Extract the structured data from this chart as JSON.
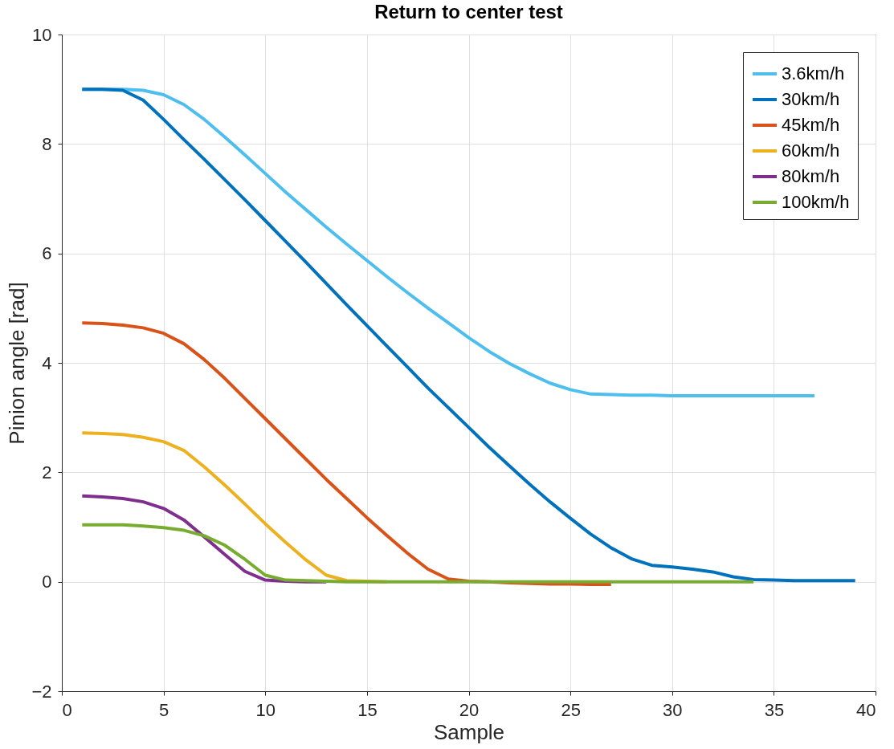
{
  "chart_data": {
    "type": "line",
    "title": "Return to center test",
    "xlabel": "Sample",
    "ylabel": "Pinion angle [rad]",
    "xlim": [
      0,
      40
    ],
    "xticks": [
      0,
      5,
      10,
      15,
      20,
      25,
      30,
      35,
      40
    ],
    "ylim": [
      -2,
      10
    ],
    "yticks": [
      -2,
      0,
      2,
      4,
      6,
      8,
      10
    ],
    "grid": true,
    "legend": "top right",
    "marker": "none",
    "line_style": "solid",
    "series": [
      {
        "name": "3.6km/h",
        "color": "#4dbeee",
        "x": [
          1,
          2,
          3,
          4,
          5,
          6,
          7,
          8,
          9,
          10,
          11,
          12,
          13,
          14,
          15,
          16,
          17,
          18,
          19,
          20,
          21,
          22,
          23,
          24,
          25,
          26,
          27,
          28,
          29,
          30,
          31,
          32,
          33,
          34,
          35,
          36,
          37
        ],
        "values": [
          9.0,
          9.0,
          9.0,
          8.98,
          8.9,
          8.72,
          8.45,
          8.13,
          7.8,
          7.46,
          7.12,
          6.8,
          6.48,
          6.17,
          5.87,
          5.57,
          5.28,
          5.0,
          4.73,
          4.46,
          4.21,
          3.99,
          3.8,
          3.63,
          3.51,
          3.43,
          3.42,
          3.41,
          3.41,
          3.4,
          3.4,
          3.4,
          3.4,
          3.4,
          3.4,
          3.4,
          3.4
        ]
      },
      {
        "name": "30km/h",
        "color": "#0072bd",
        "x": [
          1,
          2,
          3,
          4,
          5,
          6,
          7,
          8,
          9,
          10,
          11,
          12,
          13,
          14,
          15,
          16,
          17,
          18,
          19,
          20,
          21,
          22,
          23,
          24,
          25,
          26,
          27,
          28,
          29,
          30,
          31,
          32,
          33,
          34,
          35,
          36,
          37,
          38,
          39
        ],
        "values": [
          9.0,
          9.0,
          8.98,
          8.8,
          8.45,
          8.08,
          7.72,
          7.35,
          6.98,
          6.6,
          6.22,
          5.84,
          5.45,
          5.06,
          4.68,
          4.3,
          3.92,
          3.54,
          3.18,
          2.82,
          2.46,
          2.12,
          1.78,
          1.46,
          1.16,
          0.87,
          0.62,
          0.42,
          0.3,
          0.27,
          0.23,
          0.18,
          0.09,
          0.04,
          0.03,
          0.02,
          0.02,
          0.02,
          0.02
        ]
      },
      {
        "name": "45km/h",
        "color": "#d95319",
        "x": [
          1,
          2,
          3,
          4,
          5,
          6,
          7,
          8,
          9,
          10,
          11,
          12,
          13,
          14,
          15,
          16,
          17,
          18,
          19,
          20,
          21,
          22,
          23,
          24,
          25,
          26,
          27
        ],
        "values": [
          4.73,
          4.72,
          4.69,
          4.64,
          4.54,
          4.35,
          4.06,
          3.72,
          3.35,
          2.98,
          2.61,
          2.24,
          1.87,
          1.52,
          1.17,
          0.84,
          0.52,
          0.23,
          0.05,
          0.01,
          0.0,
          -0.02,
          -0.03,
          -0.04,
          -0.04,
          -0.05,
          -0.05
        ]
      },
      {
        "name": "60km/h",
        "color": "#edb120",
        "x": [
          1,
          2,
          3,
          4,
          5,
          6,
          7,
          8,
          9,
          10,
          11,
          12,
          13,
          14,
          15,
          16
        ],
        "values": [
          2.72,
          2.71,
          2.69,
          2.64,
          2.56,
          2.4,
          2.1,
          1.77,
          1.42,
          1.06,
          0.72,
          0.4,
          0.12,
          0.02,
          0.01,
          0
        ]
      },
      {
        "name": "80km/h",
        "color": "#7e2f8e",
        "x": [
          1,
          2,
          3,
          4,
          5,
          6,
          7,
          8,
          9,
          10,
          11,
          12,
          13
        ],
        "values": [
          1.57,
          1.55,
          1.52,
          1.46,
          1.34,
          1.13,
          0.82,
          0.5,
          0.19,
          0.03,
          0.01,
          0,
          0
        ]
      },
      {
        "name": "100km/h",
        "color": "#77ac30",
        "x": [
          1,
          2,
          3,
          4,
          5,
          6,
          7,
          8,
          9,
          10,
          11,
          12,
          13,
          14,
          15,
          16,
          17,
          18,
          19,
          20,
          21,
          22,
          23,
          24,
          25,
          26,
          27,
          28,
          29,
          30,
          31,
          32,
          33,
          34
        ],
        "values": [
          1.04,
          1.04,
          1.04,
          1.02,
          0.99,
          0.94,
          0.84,
          0.67,
          0.41,
          0.12,
          0.03,
          0.02,
          0.01,
          0,
          0,
          0,
          0,
          0,
          0,
          0,
          0,
          0,
          0,
          0,
          0,
          0,
          0,
          0,
          0,
          0,
          0,
          0,
          0,
          0
        ]
      }
    ]
  }
}
